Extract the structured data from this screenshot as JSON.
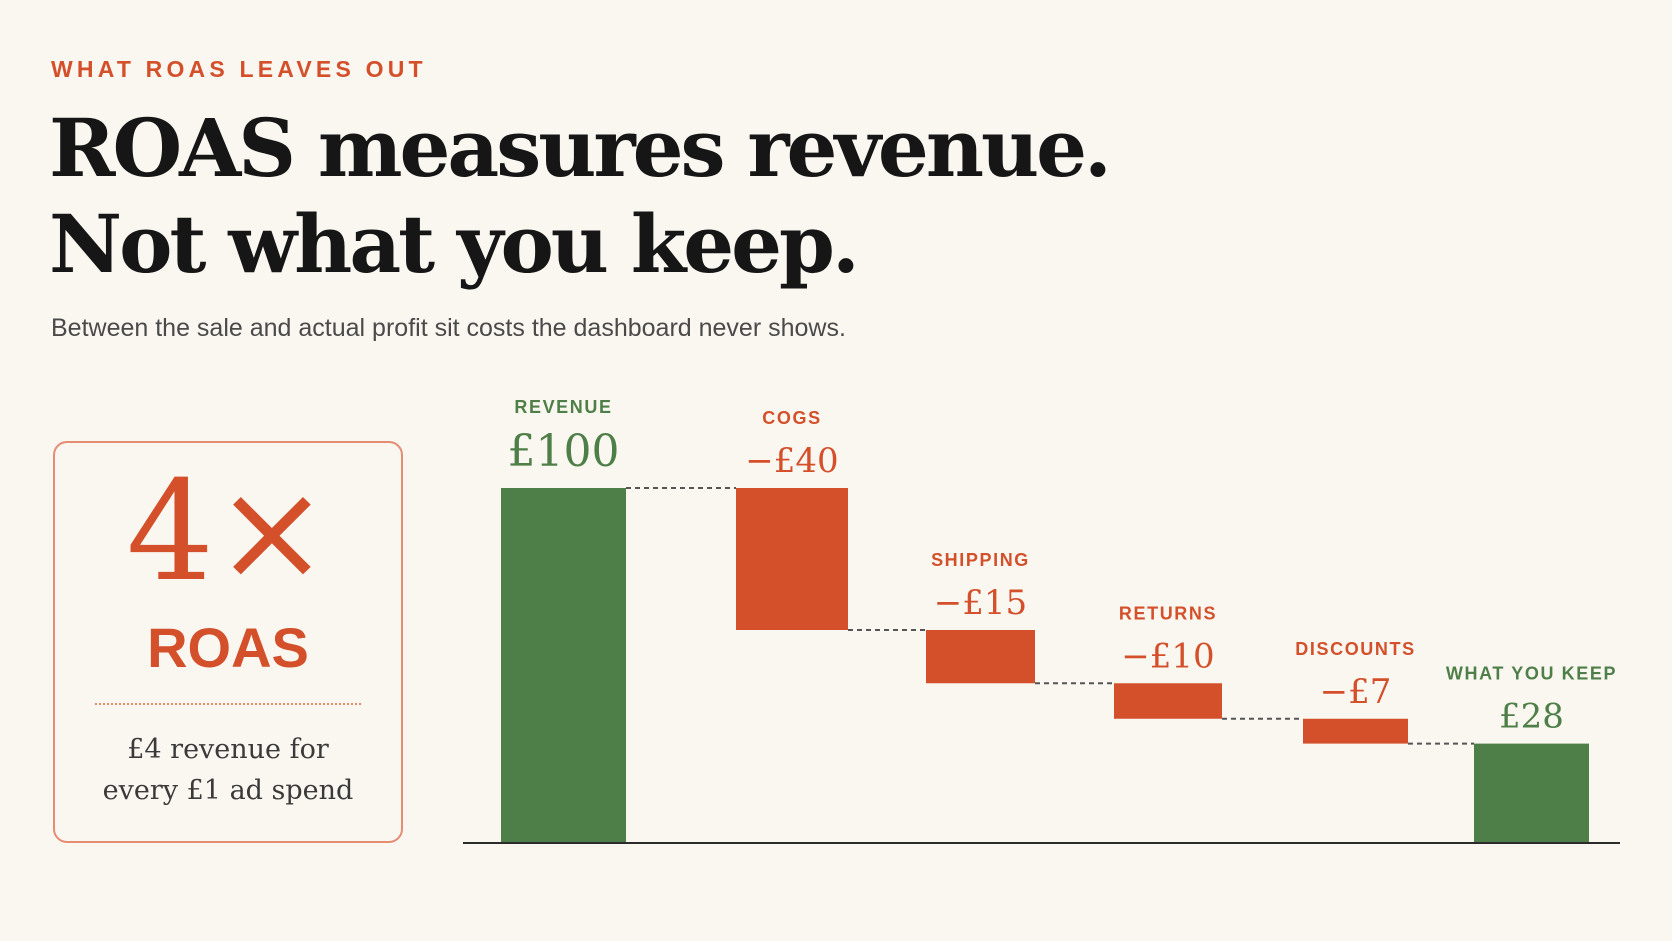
{
  "eyebrow": "WHAT ROAS LEAVES OUT",
  "headline": {
    "line1": "ROAS measures revenue.",
    "line2": "Not what you keep."
  },
  "subhead": "Between the sale and actual profit sit costs the dashboard never shows.",
  "roas_card": {
    "big": "4×",
    "label": "ROAS",
    "desc_line1": "£4 revenue for",
    "desc_line2": "every £1 ad spend"
  },
  "colors": {
    "accent": "#d4502b",
    "green": "#4f7f48",
    "background": "#faf7f1",
    "text": "#161616"
  },
  "chart_data": {
    "type": "waterfall",
    "unit": "£",
    "ylim": [
      0,
      100
    ],
    "steps": [
      {
        "name": "REVENUE",
        "label": "£100",
        "value": 100,
        "kind": "total"
      },
      {
        "name": "COGS",
        "label": "−£40",
        "value": -40,
        "kind": "delta"
      },
      {
        "name": "SHIPPING",
        "label": "−£15",
        "value": -15,
        "kind": "delta"
      },
      {
        "name": "RETURNS",
        "label": "−£10",
        "value": -10,
        "kind": "delta"
      },
      {
        "name": "DISCOUNTS",
        "label": "−£7",
        "value": -7,
        "kind": "delta"
      },
      {
        "name": "WHAT YOU KEEP",
        "label": "£28",
        "value": 28,
        "kind": "total"
      }
    ]
  }
}
